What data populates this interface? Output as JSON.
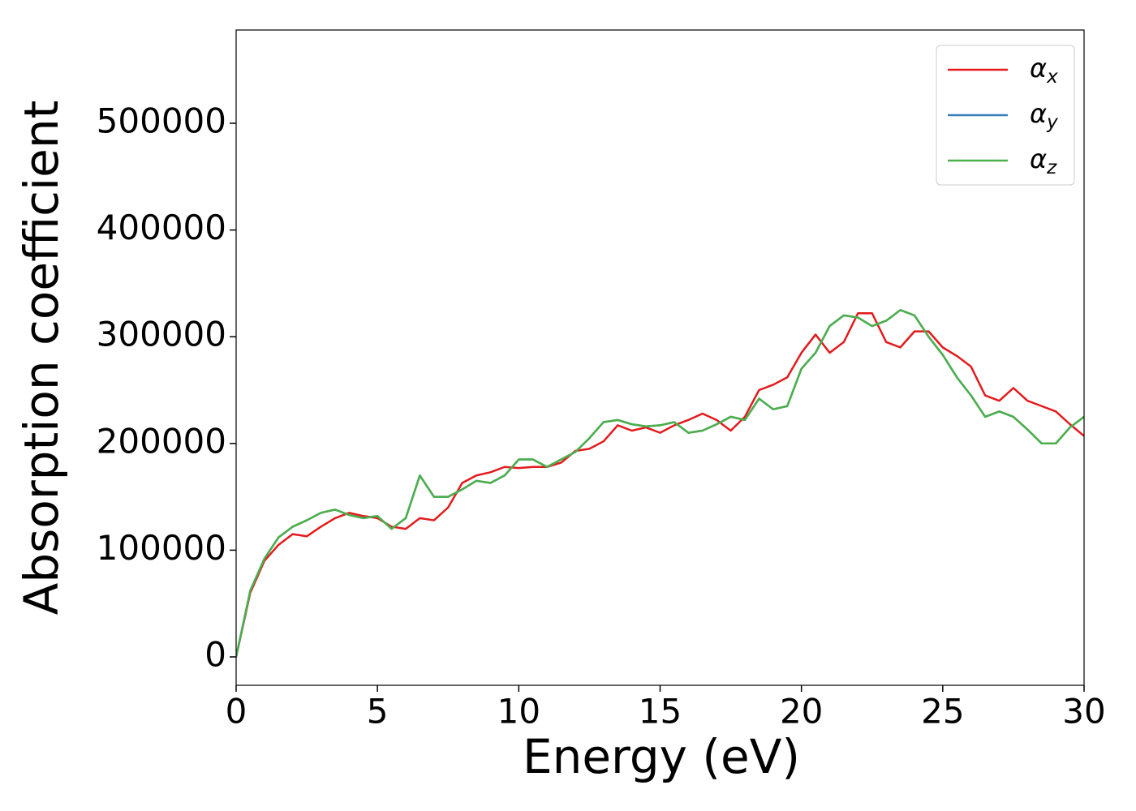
{
  "chart_data": {
    "type": "line",
    "x_label": "Energy (eV)",
    "y_label": "Absorption coefficient",
    "x": [
      0,
      0.5,
      1,
      1.5,
      2,
      2.5,
      3,
      3.5,
      4,
      4.5,
      5,
      5.5,
      6,
      6.5,
      7,
      7.5,
      8,
      8.5,
      9,
      9.5,
      10,
      10.5,
      11,
      11.5,
      12,
      12.5,
      13,
      13.5,
      14,
      14.5,
      15,
      15.5,
      16,
      16.5,
      17,
      17.5,
      18,
      18.5,
      19,
      19.5,
      20,
      20.5,
      21,
      21.5,
      22,
      22.5,
      23,
      23.5,
      24,
      24.5,
      25,
      25.5,
      26,
      26.5,
      27,
      27.5,
      28,
      28.5,
      29,
      29.5,
      30
    ],
    "series": [
      {
        "name": "αx",
        "color": "#e41a1c",
        "values": [
          0,
          60000,
          90000,
          105000,
          115000,
          113000,
          122000,
          130000,
          135000,
          132000,
          130000,
          122000,
          120000,
          130000,
          128000,
          140000,
          163000,
          170000,
          173000,
          178000,
          177000,
          178000,
          178000,
          182000,
          193000,
          195000,
          202000,
          217000,
          212000,
          215000,
          210000,
          217000,
          222000,
          228000,
          222000,
          212000,
          225000,
          250000,
          255000,
          262000,
          285000,
          302000,
          285000,
          295000,
          322000,
          322000,
          295000,
          290000,
          305000,
          305000,
          290000,
          282000,
          272000,
          245000,
          240000,
          252000,
          240000,
          235000,
          230000,
          218000,
          207000
        ]
      },
      {
        "name": "αy",
        "color": "#377eb8",
        "values": [
          0,
          62000,
          92000,
          112000,
          122000,
          128000,
          135000,
          138000,
          133000,
          130000,
          132000,
          120000,
          130000,
          170000,
          150000,
          150000,
          157000,
          165000,
          163000,
          170000,
          185000,
          185000,
          178000,
          185000,
          192000,
          205000,
          220000,
          222000,
          218000,
          216000,
          217000,
          220000,
          210000,
          212000,
          218000,
          225000,
          222000,
          242000,
          232000,
          235000,
          270000,
          285000,
          310000,
          320000,
          318000,
          310000,
          315000,
          325000,
          320000,
          300000,
          283000,
          262000,
          245000,
          225000,
          230000,
          225000,
          213000,
          200000,
          200000,
          215000,
          225000
        ]
      },
      {
        "name": "αz",
        "color": "#4daf4a",
        "values": [
          0,
          62000,
          92000,
          112000,
          122000,
          128000,
          135000,
          138000,
          133000,
          130000,
          132000,
          120000,
          130000,
          170000,
          150000,
          150000,
          157000,
          165000,
          163000,
          170000,
          185000,
          185000,
          178000,
          185000,
          192000,
          205000,
          220000,
          222000,
          218000,
          216000,
          217000,
          220000,
          210000,
          212000,
          218000,
          225000,
          222000,
          242000,
          232000,
          235000,
          270000,
          285000,
          310000,
          320000,
          318000,
          310000,
          315000,
          325000,
          320000,
          300000,
          283000,
          262000,
          245000,
          225000,
          230000,
          225000,
          213000,
          200000,
          200000,
          215000,
          225000
        ]
      }
    ],
    "xlim": [
      0,
      30
    ],
    "xticks": [
      0,
      5,
      10,
      15,
      20,
      25,
      30
    ],
    "ylim": [
      -26600,
      587400
    ],
    "yticks": [
      0,
      100000,
      200000,
      300000,
      400000,
      500000
    ],
    "legend": "upper right"
  }
}
